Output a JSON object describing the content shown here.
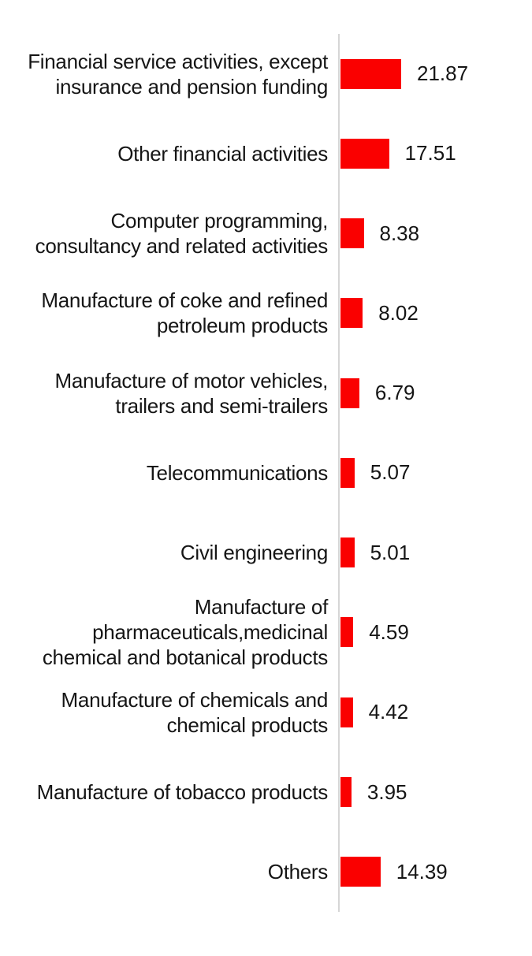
{
  "chart_data": {
    "type": "bar",
    "orientation": "horizontal",
    "title": "",
    "xlabel": "",
    "ylabel": "",
    "grid": false,
    "legend": false,
    "data_labels": "outside",
    "categories": [
      "Financial service activities, except\ninsurance and pension funding",
      "Other financial activities",
      "Computer programming,\nconsultancy and related activities",
      "Manufacture of coke and refined\npetroleum products",
      "Manufacture of motor vehicles,\ntrailers and semi-trailers",
      "Telecommunications",
      "Civil engineering",
      "Manufacture of\npharmaceuticals,medicinal\nchemical and botanical products",
      "Manufacture of chemicals and\nchemical products",
      "Manufacture of tobacco products",
      "Others"
    ],
    "values": [
      21.87,
      17.51,
      8.38,
      8.02,
      6.79,
      5.07,
      5.01,
      4.59,
      4.42,
      3.95,
      14.39
    ],
    "value_labels": [
      "21.87",
      "17.51",
      "8.38",
      "8.02",
      "6.79",
      "5.07",
      "5.01",
      "4.59",
      "4.42",
      "3.95",
      "14.39"
    ],
    "xlim": [
      0,
      25
    ],
    "colors": {
      "bar": "#FA0000",
      "axis_line": "#D6D6D6",
      "text": "#151515"
    }
  }
}
